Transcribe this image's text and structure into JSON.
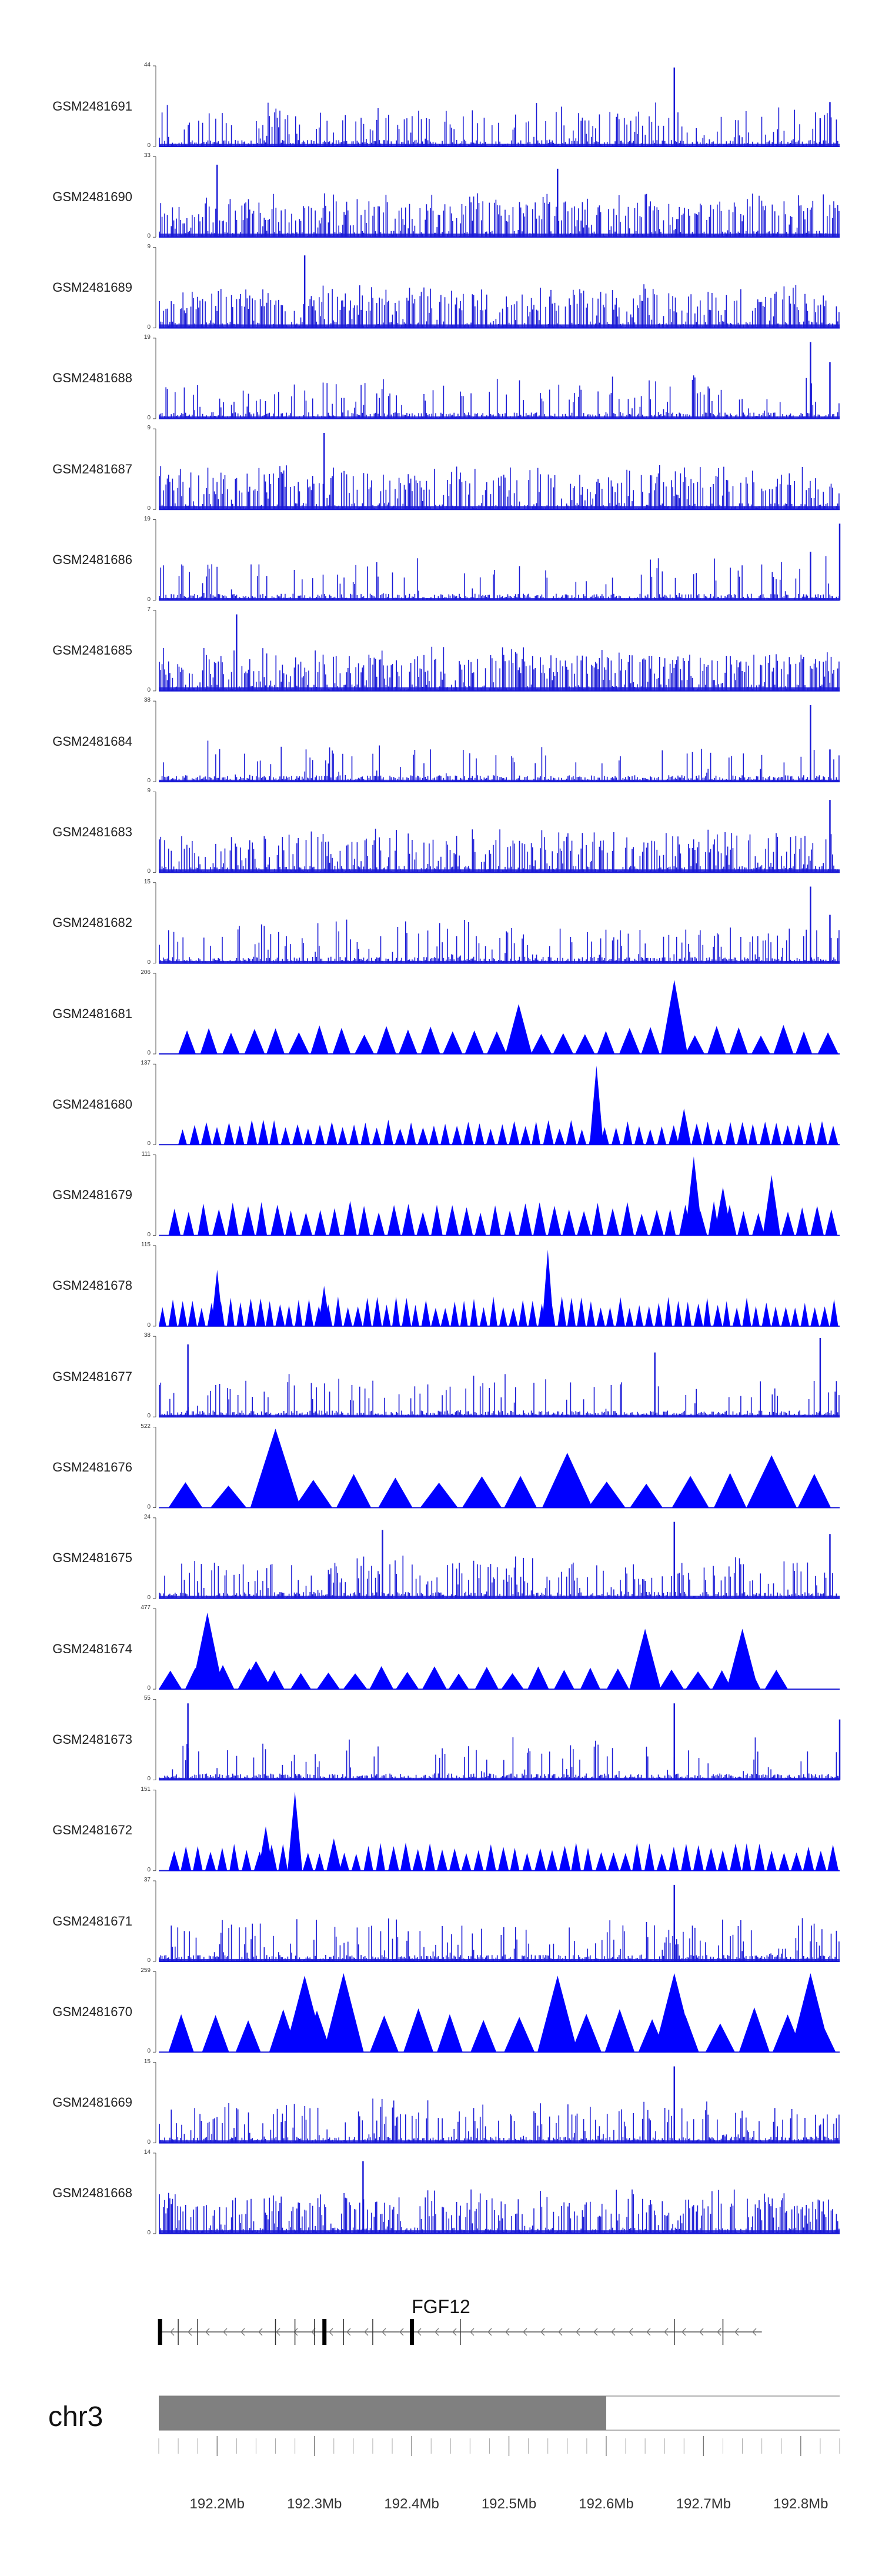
{
  "chart_data": {
    "type": "area",
    "title": "",
    "xlabel": "",
    "ylabel": "",
    "xlim_mb": [
      192.14,
      192.84
    ],
    "tracks": [
      {
        "name": "GSM2481691",
        "ymax": 44,
        "ymin": 0,
        "style": "bars",
        "density": 0.3,
        "peaks": [
          [
            192.67,
            0.98
          ],
          [
            192.83,
            0.55
          ],
          [
            192.82,
            0.35
          ]
        ]
      },
      {
        "name": "GSM2481690",
        "ymax": 33,
        "ymin": 0,
        "style": "bars",
        "density": 0.6,
        "peaks": [
          [
            192.2,
            0.9
          ],
          [
            192.55,
            0.85
          ]
        ]
      },
      {
        "name": "GSM2481689",
        "ymax": 9,
        "ymin": 0,
        "style": "bars",
        "density": 0.6,
        "peaks": [
          [
            192.29,
            0.9
          ]
        ]
      },
      {
        "name": "GSM2481688",
        "ymax": 19,
        "ymin": 0,
        "style": "bars",
        "density": 0.2,
        "peaks": [
          [
            192.81,
            0.95
          ],
          [
            192.83,
            0.7
          ]
        ]
      },
      {
        "name": "GSM2481687",
        "ymax": 9,
        "ymin": 0,
        "style": "bars",
        "density": 0.55,
        "peaks": [
          [
            192.31,
            0.95
          ]
        ]
      },
      {
        "name": "GSM2481686",
        "ymax": 19,
        "ymin": 0,
        "style": "bars",
        "density": 0.15,
        "peaks": [
          [
            192.81,
            0.6
          ],
          [
            192.84,
            0.95
          ]
        ]
      },
      {
        "name": "GSM2481685",
        "ymax": 7,
        "ymin": 0,
        "style": "bars",
        "density": 0.65,
        "peaks": [
          [
            192.22,
            0.95
          ]
        ]
      },
      {
        "name": "GSM2481684",
        "ymax": 38,
        "ymin": 0,
        "style": "bars",
        "density": 0.1,
        "peaks": [
          [
            192.81,
            0.95
          ],
          [
            192.83,
            0.4
          ]
        ]
      },
      {
        "name": "GSM2481683",
        "ymax": 9,
        "ymin": 0,
        "style": "bars",
        "density": 0.45,
        "peaks": [
          [
            192.83,
            0.9
          ]
        ]
      },
      {
        "name": "GSM2481682",
        "ymax": 15,
        "ymin": 0,
        "style": "bars",
        "density": 0.2,
        "peaks": [
          [
            192.81,
            0.95
          ],
          [
            192.83,
            0.6
          ]
        ]
      },
      {
        "name": "GSM2481681",
        "ymax": 206,
        "ymin": 0,
        "style": "tri",
        "count": 30,
        "xstart": 192.16,
        "xend": 192.84,
        "base": 0.3,
        "peaks": [
          [
            192.51,
            0.62
          ],
          [
            192.67,
            0.92
          ]
        ]
      },
      {
        "name": "GSM2481680",
        "ymax": 137,
        "ymin": 0,
        "style": "tri",
        "count": 58,
        "xstart": 192.16,
        "xend": 192.84,
        "base": 0.25,
        "peaks": [
          [
            192.59,
            0.98
          ],
          [
            192.68,
            0.45
          ]
        ]
      },
      {
        "name": "GSM2481679",
        "ymax": 111,
        "ymin": 0,
        "style": "tri",
        "count": 46,
        "xstart": 192.15,
        "xend": 192.84,
        "base": 0.35,
        "peaks": [
          [
            192.69,
            0.98
          ],
          [
            192.72,
            0.6
          ],
          [
            192.77,
            0.75
          ]
        ]
      },
      {
        "name": "GSM2481678",
        "ymax": 115,
        "ymin": 0,
        "style": "tri",
        "count": 70,
        "xstart": 192.14,
        "xend": 192.84,
        "base": 0.3,
        "peaks": [
          [
            192.2,
            0.7
          ],
          [
            192.54,
            0.95
          ],
          [
            192.31,
            0.5
          ]
        ]
      },
      {
        "name": "GSM2481677",
        "ymax": 38,
        "ymin": 0,
        "style": "bars",
        "density": 0.15,
        "peaks": [
          [
            192.17,
            0.9
          ],
          [
            192.65,
            0.8
          ],
          [
            192.82,
            0.98
          ]
        ]
      },
      {
        "name": "GSM2481676",
        "ymax": 522,
        "ymin": 0,
        "style": "tri",
        "count": 16,
        "xstart": 192.15,
        "xend": 192.84,
        "base": 0.35,
        "peaks": [
          [
            192.26,
            0.98
          ],
          [
            192.56,
            0.68
          ],
          [
            192.77,
            0.65
          ]
        ]
      },
      {
        "name": "GSM2481675",
        "ymax": 24,
        "ymin": 0,
        "style": "bars",
        "density": 0.3,
        "peaks": [
          [
            192.37,
            0.85
          ],
          [
            192.67,
            0.95
          ],
          [
            192.83,
            0.8
          ]
        ]
      },
      {
        "name": "GSM2481674",
        "ymax": 477,
        "ymin": 0,
        "style": "tri",
        "count": 24,
        "xstart": 192.14,
        "xend": 192.79,
        "base": 0.25,
        "peaks": [
          [
            192.19,
            0.95
          ],
          [
            192.24,
            0.35
          ],
          [
            192.64,
            0.75
          ],
          [
            192.74,
            0.75
          ]
        ]
      },
      {
        "name": "GSM2481673",
        "ymax": 55,
        "ymin": 0,
        "style": "bars",
        "density": 0.15,
        "peaks": [
          [
            192.17,
            0.95
          ],
          [
            192.67,
            0.95
          ],
          [
            192.84,
            0.75
          ]
        ]
      },
      {
        "name": "GSM2481672",
        "ymax": 151,
        "ymin": 0,
        "style": "tri",
        "count": 55,
        "xstart": 192.15,
        "xend": 192.84,
        "base": 0.28,
        "peaks": [
          [
            192.28,
            0.98
          ],
          [
            192.25,
            0.55
          ],
          [
            192.32,
            0.4
          ]
        ]
      },
      {
        "name": "GSM2481671",
        "ymax": 37,
        "ymin": 0,
        "style": "bars",
        "density": 0.25,
        "peaks": [
          [
            192.67,
            0.95
          ]
        ]
      },
      {
        "name": "GSM2481670",
        "ymax": 259,
        "ymin": 0,
        "style": "tri",
        "count": 20,
        "xstart": 192.15,
        "xend": 192.84,
        "base": 0.45,
        "peaks": [
          [
            192.33,
            0.98
          ],
          [
            192.29,
            0.95
          ],
          [
            192.67,
            0.98
          ],
          [
            192.81,
            0.98
          ],
          [
            192.55,
            0.95
          ]
        ]
      },
      {
        "name": "GSM2481669",
        "ymax": 15,
        "ymin": 0,
        "style": "bars",
        "density": 0.3,
        "peaks": [
          [
            192.67,
            0.95
          ]
        ]
      },
      {
        "name": "GSM2481668",
        "ymax": 14,
        "ymin": 0,
        "style": "bars",
        "density": 0.55,
        "peaks": [
          [
            192.35,
            0.9
          ]
        ]
      }
    ],
    "gene": {
      "name": "FGF12",
      "start_mb": 192.14,
      "end_mb": 192.76,
      "strand": "-",
      "thick_exons_mb": [
        192.141,
        192.31,
        192.4
      ],
      "exons_mb": [
        192.16,
        192.18,
        192.26,
        192.28,
        192.3,
        192.33,
        192.36,
        192.4,
        192.45,
        192.67,
        192.72
      ]
    },
    "ideogram": {
      "chromosome": "chr3",
      "highlight_end_mb": 192.6,
      "tick_labels": [
        "192.2Mb",
        "192.3Mb",
        "192.4Mb",
        "192.5Mb",
        "192.6Mb",
        "192.7Mb",
        "192.8Mb"
      ],
      "tick_values_mb": [
        192.2,
        192.3,
        192.4,
        192.5,
        192.6,
        192.7,
        192.8
      ],
      "minor_tick_step_mb": 0.02
    },
    "colors": {
      "signal": "#1a1ad6",
      "signal_fill": "#0000ff",
      "ideogram_band": "#808080",
      "axis": "#555555"
    }
  }
}
